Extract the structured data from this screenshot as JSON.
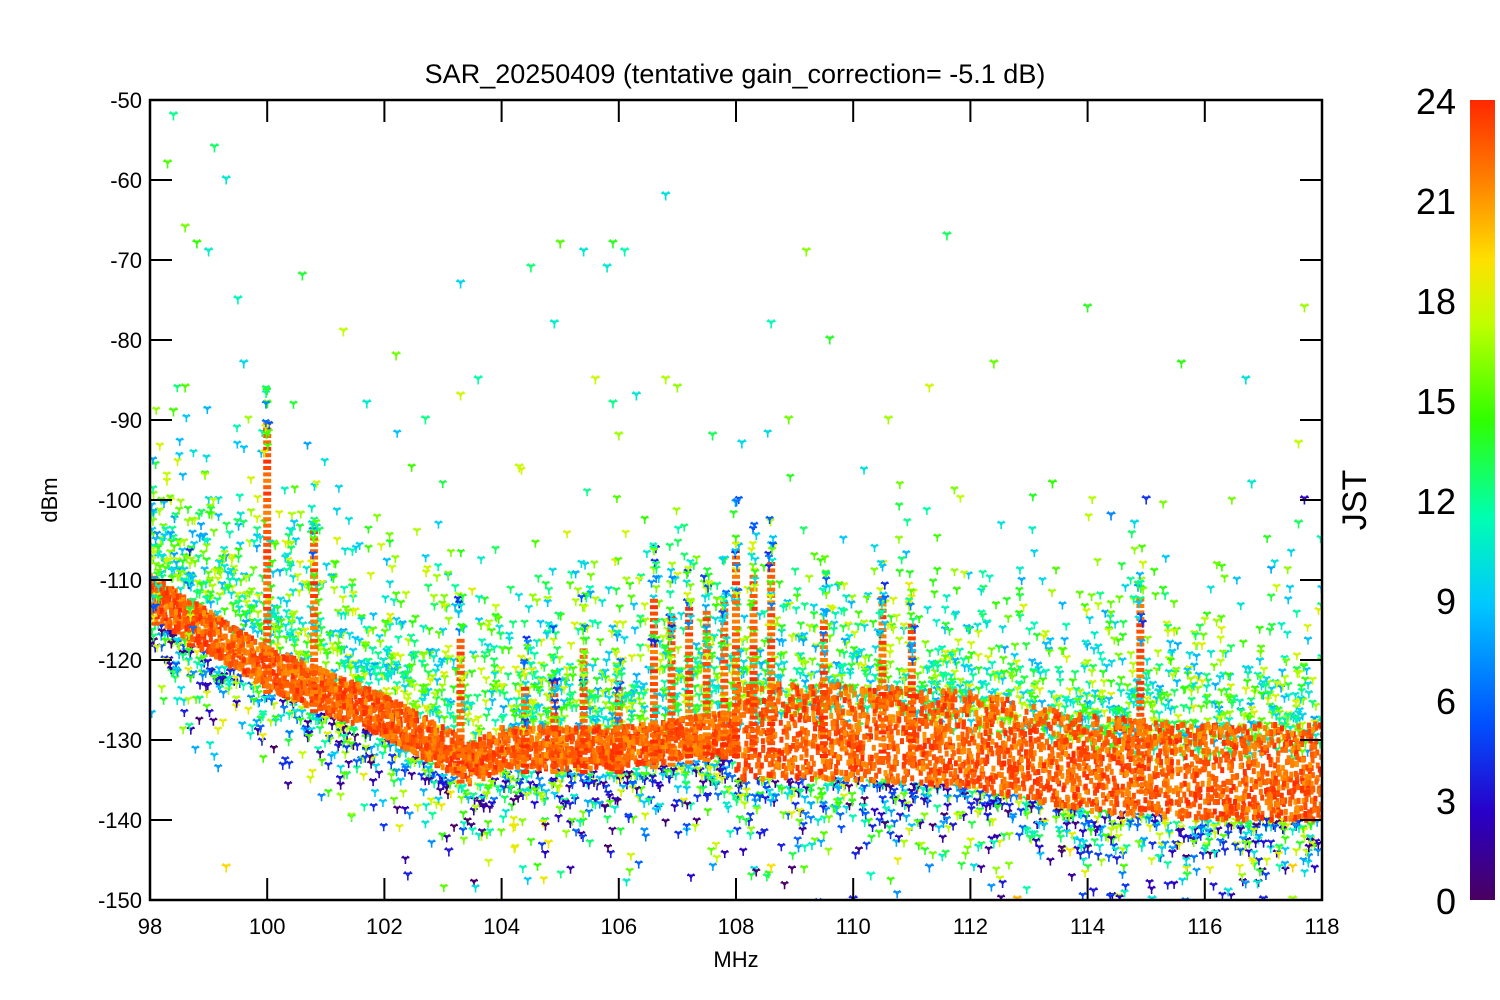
{
  "chart_data": {
    "type": "scatter",
    "title": "SAR_20250409 (tentative gain_correction= -5.1 dB)",
    "xlabel": "MHz",
    "ylabel": "dBm",
    "xlim": [
      98,
      118
    ],
    "ylim": [
      -150,
      -50
    ],
    "xticks": [
      98,
      100,
      102,
      104,
      106,
      108,
      110,
      112,
      114,
      116,
      118
    ],
    "yticks": [
      -50,
      -60,
      -70,
      -80,
      -90,
      -100,
      -110,
      -120,
      -130,
      -140,
      -150
    ],
    "grid": false,
    "colorbar": {
      "label": "JST",
      "range": [
        0,
        24
      ],
      "ticks": [
        0,
        3,
        6,
        9,
        12,
        15,
        18,
        21,
        24
      ],
      "colormap": "rainbow",
      "colors": [
        "#4a0060",
        "#2800c8",
        "#0050ff",
        "#00c8ff",
        "#00ffb0",
        "#30ff00",
        "#c0ff00",
        "#ffe000",
        "#ff8000",
        "#ff2800"
      ]
    },
    "series": [
      {
        "values_note_x": "MHz",
        "values_note_y": "dBm",
        "noise_floor": [
          [
            98,
            -112
          ],
          [
            100,
            -121
          ],
          [
            102,
            -127
          ],
          [
            103.5,
            -133
          ],
          [
            104,
            -131
          ],
          [
            106,
            -131
          ],
          [
            108,
            -129
          ],
          [
            110,
            -129
          ],
          [
            112,
            -130
          ],
          [
            114,
            -133
          ],
          [
            116,
            -134
          ],
          [
            118,
            -134
          ]
        ],
        "strong_signals": [
          [
            98.1,
            -110
          ],
          [
            98.7,
            -112
          ],
          [
            100,
            -90
          ],
          [
            100.8,
            -104
          ],
          [
            103.3,
            -117
          ],
          [
            104.4,
            -123
          ],
          [
            104.9,
            -122
          ],
          [
            105.4,
            -118
          ],
          [
            106.0,
            -122
          ],
          [
            106.6,
            -112
          ],
          [
            106.9,
            -114
          ],
          [
            107.2,
            -113
          ],
          [
            107.5,
            -114
          ],
          [
            107.8,
            -113
          ],
          [
            108.0,
            -106
          ],
          [
            108.3,
            -109
          ],
          [
            108.6,
            -108
          ],
          [
            109.5,
            -115
          ],
          [
            110.5,
            -112
          ],
          [
            111.0,
            -115
          ],
          [
            114.9,
            -112
          ]
        ],
        "outliers": [
          [
            98.4,
            -52
          ],
          [
            98.3,
            -58
          ],
          [
            99.1,
            -56
          ],
          [
            99.3,
            -60
          ],
          [
            98.6,
            -66
          ],
          [
            98.8,
            -68
          ],
          [
            99.0,
            -69
          ],
          [
            100.6,
            -72
          ],
          [
            103.3,
            -73
          ],
          [
            104.5,
            -71
          ],
          [
            105.0,
            -68
          ],
          [
            105.4,
            -69
          ],
          [
            105.8,
            -71
          ],
          [
            105.9,
            -68
          ],
          [
            106.1,
            -69
          ],
          [
            106.8,
            -62
          ],
          [
            108.6,
            -78
          ],
          [
            109.2,
            -69
          ],
          [
            109.6,
            -80
          ],
          [
            111.6,
            -67
          ],
          [
            112.4,
            -83
          ],
          [
            114.0,
            -76
          ],
          [
            115.6,
            -83
          ],
          [
            116.7,
            -85
          ],
          [
            117.7,
            -76
          ],
          [
            113.4,
            -98
          ],
          [
            101.3,
            -79
          ],
          [
            102.2,
            -82
          ],
          [
            99.5,
            -75
          ],
          [
            104.9,
            -78
          ],
          [
            103.6,
            -85
          ],
          [
            106.8,
            -85
          ],
          [
            107.0,
            -86
          ],
          [
            98.6,
            -86
          ],
          [
            106.3,
            -87
          ],
          [
            103.3,
            -87
          ],
          [
            105.6,
            -85
          ],
          [
            105.9,
            -88
          ],
          [
            108.9,
            -90
          ],
          [
            111.3,
            -86
          ],
          [
            110.6,
            -90
          ],
          [
            101.7,
            -88
          ],
          [
            102.7,
            -90
          ],
          [
            99.6,
            -83
          ],
          [
            98.4,
            -89
          ],
          [
            115.0,
            -100
          ],
          [
            117.6,
            -93
          ],
          [
            108.1,
            -93
          ],
          [
            107.6,
            -92
          ],
          [
            106.0,
            -92
          ],
          [
            104.3,
            -96
          ],
          [
            114.4,
            -102
          ],
          [
            114.8,
            -103
          ],
          [
            116.8,
            -98
          ],
          [
            117.6,
            -103
          ],
          [
            117.7,
            -100
          ],
          [
            110.0,
            -150
          ],
          [
            111.3,
            -151
          ],
          [
            112.8,
            -150
          ],
          [
            114.1,
            -149
          ],
          [
            115.1,
            -150
          ],
          [
            116.4,
            -149
          ],
          [
            117.0,
            -150
          ],
          [
            117.3,
            -151
          ],
          [
            117.5,
            -150
          ],
          [
            99.3,
            -146
          ],
          [
            102.4,
            -147
          ],
          [
            103.1,
            -144
          ],
          [
            104.2,
            -141
          ],
          [
            104.8,
            -143
          ],
          [
            108.6,
            -146
          ],
          [
            110.3,
            -147
          ],
          [
            111.3,
            -146
          ],
          [
            112.4,
            -143
          ],
          [
            113.7,
            -144
          ],
          [
            114.5,
            -145
          ],
          [
            115.7,
            -147
          ],
          [
            116.9,
            -148
          ],
          [
            117.5,
            -146
          ]
        ]
      }
    ]
  }
}
